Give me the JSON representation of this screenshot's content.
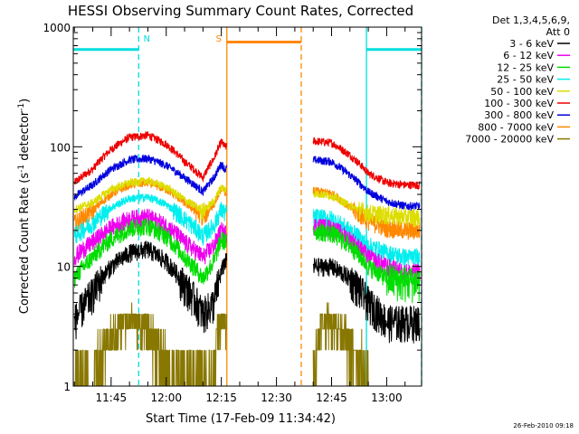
{
  "chart_data": {
    "type": "line",
    "title": "HESSI Observing Summary Count Rates, Corrected",
    "xlabel": "Start Time (17-Feb-09 11:34:42)",
    "ylabel_main": "Corrected Count Rate (s",
    "ylabel_exp1": "-1",
    "ylabel_mid": " detector",
    "ylabel_exp2": "-1",
    "ylabel_end": ")",
    "yscale": "log",
    "ylim": [
      1,
      1000
    ],
    "xlim": [
      "11:34:42",
      "13:09:30"
    ],
    "x_ticks": [
      "11:45",
      "12:00",
      "12:15",
      "12:30",
      "12:45",
      "13:00"
    ],
    "y_ticks": [
      "1",
      "10",
      "100",
      "1000"
    ],
    "footer_date": "26-Feb-2010 09:18",
    "legend": {
      "header1": "Det 1,3,4,5,6,9,",
      "header2": "Att 0",
      "entries": [
        {
          "label": "3 - 6 keV",
          "color": "#000000"
        },
        {
          "label": "6 - 12 keV",
          "color": "#ee00ee"
        },
        {
          "label": "12 - 25 keV",
          "color": "#00dd00"
        },
        {
          "label": "25 - 50 keV",
          "color": "#00eeee"
        },
        {
          "label": "50 - 100 keV",
          "color": "#dddd00"
        },
        {
          "label": "100 - 300 keV",
          "color": "#ee0000"
        },
        {
          "label": "300 - 800 keV",
          "color": "#0000dd"
        },
        {
          "label": "800 - 7000 keV",
          "color": "#ff8800"
        },
        {
          "label": "7000 - 20000 keV",
          "color": "#887700"
        }
      ]
    },
    "segments": [
      {
        "start": "11:34:42",
        "end": "12:16:30"
      },
      {
        "start": "12:40:00",
        "end": "13:09:30"
      }
    ],
    "series": [
      {
        "band": "100 - 300 keV",
        "color": "#ee0000",
        "x": [
          "11:35",
          "11:40",
          "11:45",
          "11:50",
          "11:55",
          "12:00",
          "12:05",
          "12:10",
          "12:13",
          "12:15",
          "12:16",
          "12:40",
          "12:45",
          "12:50",
          "12:55",
          "13:00",
          "13:05",
          "13:09"
        ],
        "y": [
          50,
          65,
          95,
          120,
          125,
          105,
          75,
          55,
          80,
          110,
          100,
          112,
          108,
          85,
          60,
          50,
          48,
          48
        ]
      },
      {
        "band": "300 - 800 keV",
        "color": "#0000dd",
        "x": [
          "11:35",
          "11:40",
          "11:45",
          "11:50",
          "11:55",
          "12:00",
          "12:05",
          "12:10",
          "12:13",
          "12:15",
          "12:16",
          "12:40",
          "12:45",
          "12:50",
          "12:55",
          "13:00",
          "13:05",
          "13:09"
        ],
        "y": [
          38,
          48,
          65,
          78,
          80,
          70,
          55,
          42,
          55,
          72,
          65,
          78,
          75,
          58,
          42,
          35,
          32,
          32
        ]
      },
      {
        "band": "800 - 7000 keV",
        "color": "#ff8800",
        "x": [
          "11:35",
          "11:40",
          "11:45",
          "11:50",
          "11:55",
          "12:00",
          "12:05",
          "12:10",
          "12:13",
          "12:15",
          "12:16",
          "12:40",
          "12:45",
          "12:50",
          "12:55",
          "13:00",
          "13:05",
          "13:09"
        ],
        "y": [
          23,
          29,
          40,
          48,
          50,
          44,
          34,
          26,
          33,
          45,
          42,
          43,
          41,
          31,
          24,
          21,
          20,
          20
        ]
      },
      {
        "band": "50 - 100 keV",
        "color": "#dddd00",
        "x": [
          "11:35",
          "11:40",
          "11:45",
          "11:50",
          "11:55",
          "12:00",
          "12:05",
          "12:10",
          "12:13",
          "12:15",
          "12:16",
          "12:40",
          "12:45",
          "12:50",
          "12:55",
          "13:00",
          "13:05",
          "13:09"
        ],
        "y": [
          30,
          34,
          44,
          50,
          52,
          46,
          36,
          29,
          35,
          46,
          44,
          41,
          39,
          32,
          28,
          27,
          26,
          26
        ]
      },
      {
        "band": "25 - 50 keV",
        "color": "#00eeee",
        "x": [
          "11:35",
          "11:40",
          "11:45",
          "11:50",
          "11:55",
          "12:00",
          "12:05",
          "12:10",
          "12:13",
          "12:15",
          "12:16",
          "12:40",
          "12:45",
          "12:50",
          "12:55",
          "13:00",
          "13:05",
          "13:09"
        ],
        "y": [
          18,
          23,
          31,
          37,
          38,
          33,
          25,
          18,
          22,
          30,
          28,
          26,
          25,
          20,
          15,
          13,
          12,
          12
        ]
      },
      {
        "band": "6 - 12 keV",
        "color": "#ee00ee",
        "x": [
          "11:35",
          "11:40",
          "11:45",
          "11:50",
          "11:55",
          "12:00",
          "12:05",
          "12:10",
          "12:13",
          "12:15",
          "12:16",
          "12:40",
          "12:45",
          "12:50",
          "12:55",
          "13:00",
          "13:05",
          "13:09"
        ],
        "y": [
          12,
          16,
          21,
          25,
          26,
          22,
          16,
          12,
          15,
          20,
          19,
          22,
          21,
          17,
          12,
          10,
          9,
          9
        ]
      },
      {
        "band": "12 - 25 keV",
        "color": "#00dd00",
        "x": [
          "11:35",
          "11:40",
          "11:45",
          "11:50",
          "11:55",
          "12:00",
          "12:05",
          "12:10",
          "12:13",
          "12:15",
          "12:16",
          "12:40",
          "12:45",
          "12:50",
          "12:55",
          "13:00",
          "13:05",
          "13:09"
        ],
        "y": [
          8,
          12,
          17,
          21,
          22,
          18,
          12,
          8,
          11,
          17,
          16,
          20,
          19,
          15,
          10,
          8,
          7.5,
          7.5
        ]
      },
      {
        "band": "3 - 6 keV",
        "color": "#000000",
        "x": [
          "11:35",
          "11:40",
          "11:45",
          "11:50",
          "11:55",
          "12:00",
          "12:05",
          "12:10",
          "12:13",
          "12:15",
          "12:16",
          "12:40",
          "12:45",
          "12:50",
          "12:55",
          "13:00",
          "13:05",
          "13:09"
        ],
        "y": [
          3.5,
          6,
          10,
          13,
          14,
          11,
          7,
          4,
          5,
          9,
          11,
          10,
          10,
          8,
          5,
          3.5,
          3.5,
          3.5
        ]
      },
      {
        "band": "7000 - 20000 keV",
        "color": "#887700",
        "x": [
          "11:35",
          "11:40",
          "11:43",
          "11:47",
          "11:50",
          "11:55",
          "11:58",
          "12:00",
          "12:03",
          "12:08",
          "12:13",
          "12:14",
          "12:15",
          "12:16",
          "12:40",
          "12:42",
          "12:45",
          "12:48",
          "12:50",
          "12:53",
          "12:55"
        ],
        "y": [
          1,
          1,
          2,
          3,
          3.8,
          3,
          2,
          1.5,
          1,
          1,
          1,
          3,
          3.5,
          3.2,
          1,
          3.5,
          3.5,
          3,
          2,
          1.5,
          1
        ]
      }
    ],
    "markers": [
      {
        "label": "N",
        "color": "#00dddd",
        "level": 650,
        "start": "11:34:42",
        "end": "11:52:30",
        "line_at": "11:52:30",
        "line_style": "dashed"
      },
      {
        "label": "",
        "color": "#00dddd",
        "level": 650,
        "start": "12:54:30",
        "end": "13:09:30",
        "line_at": "12:54:30",
        "line_style": "solid"
      },
      {
        "label": "S",
        "color": "#ff8800",
        "level": 750,
        "start": "12:16:30",
        "end": "12:36:45",
        "line_at": "12:16:30",
        "line_style": "solid"
      },
      {
        "label": "",
        "color": "#ff8800",
        "level": 750,
        "start": "12:36:45",
        "end": "12:36:45",
        "line_at": "12:36:45",
        "line_style": "dashed"
      },
      {
        "label": "",
        "color": "#00dddd",
        "level": 0,
        "start": "13:09:30",
        "end": "13:09:30",
        "line_at": "13:09:30",
        "line_style": "dashed"
      }
    ]
  }
}
